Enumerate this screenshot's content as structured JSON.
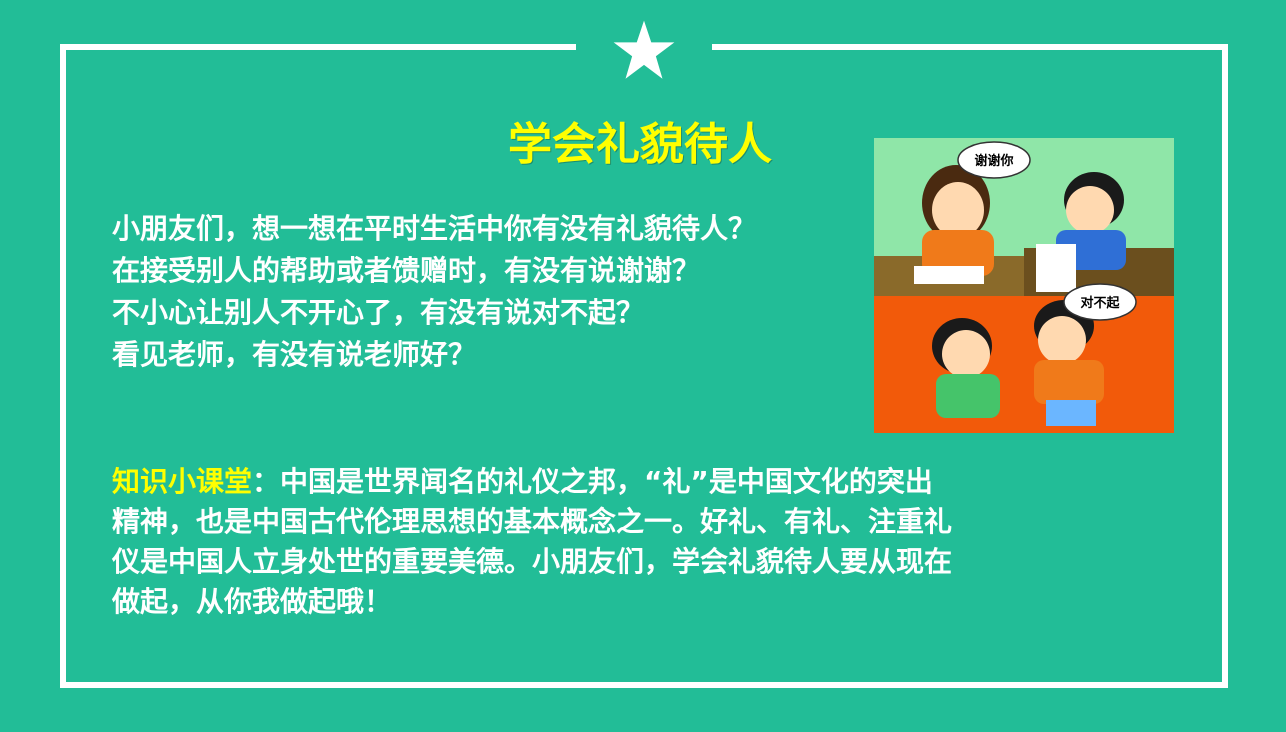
{
  "title": "学会礼貌待人",
  "questions": [
    "小朋友们，想一想在平时生活中你有没有礼貌待人？",
    "在接受别人的帮助或者馈赠时，有没有说谢谢？",
    "不小心让别人不开心了，有没有说对不起？",
    "看见老师，有没有说老师好？"
  ],
  "knowledge": {
    "label": "知识小课堂",
    "separator": "：",
    "lines": [
      "中国是世界闻名的礼仪之邦，“礼”是中国文化的突出",
      "精神，也是中国古代伦理思想的基本概念之一。好礼、有礼、注重礼",
      "仪是中国人立身处世的重要美德。小朋友们，学会礼貌待人要从现在",
      "做起，从你我做起哦！"
    ]
  },
  "illustration": {
    "bubble_top": "谢谢你",
    "bubble_bottom": "对不起"
  },
  "colors": {
    "background": "#22bd97",
    "title": "#ffff00",
    "text": "#ffffff",
    "highlight": "#ffff00",
    "panel_top": "#8fe6a8",
    "panel_bottom": "#f25a0a"
  },
  "icons": {
    "star": "star-icon"
  }
}
